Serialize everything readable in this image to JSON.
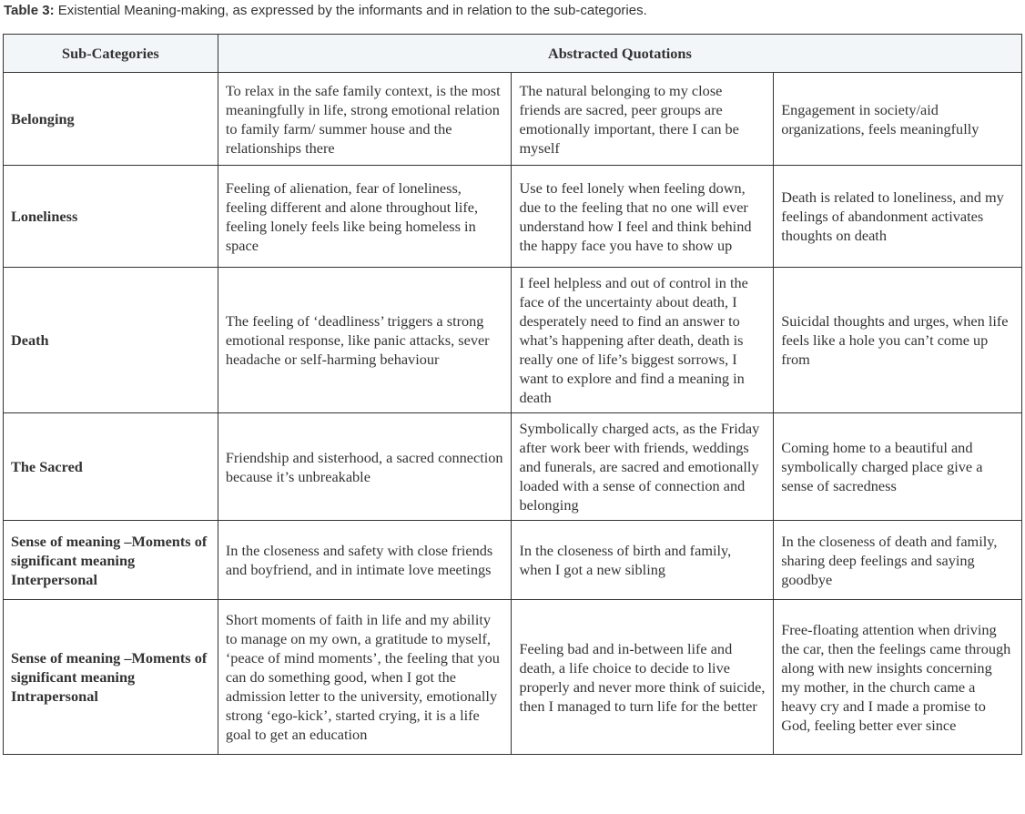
{
  "caption": {
    "label": "Table 3:",
    "text": " Existential Meaning-making, as expressed by the informants and in relation to the sub-categories."
  },
  "header": {
    "col1": "Sub-Categories",
    "col2": "Abstracted Quotations"
  },
  "rows": [
    {
      "category": "Belonging",
      "quotes": [
        "To relax in the safe family context, is the most meaningfully in life, strong emotional relation to family farm/ summer house and the relationships there",
        "The natural belonging to my close friends are sacred, peer groups are emotionally important, there I can be myself",
        "Engagement in society/aid organizations, feels meaningfully"
      ]
    },
    {
      "category": "Loneliness",
      "quotes": [
        "Feeling of alienation, fear of loneliness, feeling different and alone throughout life, feeling lonely feels like being homeless in space",
        "Use to feel lonely when feeling down, due to the feeling that no one will ever understand how I feel and think behind the happy face you have to show up",
        "Death is related to loneliness, and my feelings of abandonment activates thoughts on death"
      ]
    },
    {
      "category": "Death",
      "quotes": [
        "The feeling of  ‘deadliness’ triggers a strong emotional response, like panic attacks, sever headache or self-harming behaviour",
        "I feel helpless and out of control in the face of the uncertainty about death, I desperately need to find an answer to what’s happening after death, death is really one of life’s biggest sorrows, I want to explore and find a meaning in death",
        "Suicidal thoughts and urges, when life feels like a hole you can’t come up from"
      ]
    },
    {
      "category": "The Sacred",
      "quotes": [
        "Friendship and sisterhood, a sacred connection because it’s unbreakable",
        "Symbolically charged acts, as the Friday after work beer with friends, weddings and funerals, are sacred and emotionally loaded with a sense of connection and belonging",
        "Coming home to a beautiful and symbolically charged place give a sense of sacredness"
      ]
    },
    {
      "category": "Sense of meaning –Moments of significant meaning Interpersonal",
      "quotes": [
        "In the closeness and safety with close friends and boyfriend, and in intimate love meetings",
        "In the closeness of birth and family, when I got a new sibling",
        "In the closeness of death and family, sharing deep feelings and saying goodbye"
      ]
    },
    {
      "category": "Sense of meaning –Moments of significant meaning Intrapersonal",
      "quotes": [
        "Short moments of faith in life and my ability to manage on my own, a gratitude to myself, ‘peace of mind moments’, the feeling that you can do something good, when I got the admission letter to the university, emotionally strong ‘ego-kick’, started crying, it is a life goal to get an education",
        "Feeling bad and in-between life and death, a life choice to decide to live properly and never more think of suicide, then I managed to turn life for the better",
        "Free-floating attention when driving the car, then the feelings came through along with new insights concerning my mother, in the church came a heavy cry and I made a promise to God, feeling better ever since"
      ]
    }
  ]
}
